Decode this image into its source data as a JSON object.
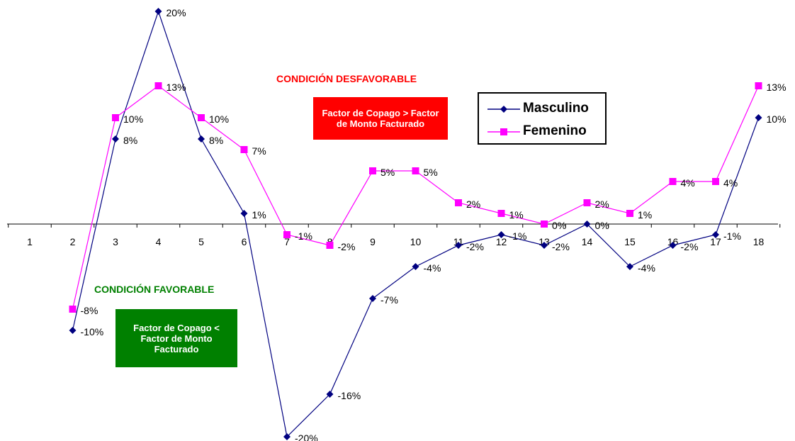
{
  "chart_data": {
    "type": "line",
    "categories": [
      "1",
      "2",
      "3",
      "4",
      "5",
      "6",
      "7",
      "8",
      "9",
      "10",
      "11",
      "12",
      "13",
      "14",
      "15",
      "16",
      "17",
      "18"
    ],
    "series": [
      {
        "name": "Masculino",
        "color": "#000080",
        "marker": "diamond",
        "values": [
          null,
          -10,
          8,
          20,
          8,
          1,
          -20,
          -16,
          -7,
          -4,
          -2,
          -1,
          -2,
          0,
          -4,
          -2,
          -1,
          10
        ],
        "labels": [
          "",
          "-10%",
          "8%",
          "20%",
          "8%",
          "1%",
          "-20%",
          "-16%",
          "-7%",
          "-4%",
          "-2%",
          "-1%",
          "-2%",
          "0%",
          "-4%",
          "-2%",
          "-1%",
          "10%"
        ]
      },
      {
        "name": "Femenino",
        "color": "#FF00FF",
        "marker": "square",
        "values": [
          null,
          -8,
          10,
          13,
          10,
          7,
          -1,
          -2,
          5,
          5,
          2,
          1,
          0,
          2,
          1,
          4,
          4,
          13
        ],
        "labels": [
          "",
          "-8%",
          "10%",
          "13%",
          "10%",
          "7%",
          "-1%",
          "-2%",
          "5%",
          "5%",
          "2%",
          "1%",
          "0%",
          "2%",
          "1%",
          "4%",
          "4%",
          "13%"
        ]
      }
    ],
    "ylim": [
      -20,
      20
    ],
    "grid": false,
    "legend_position": "top-right",
    "title": "",
    "xlabel": "",
    "ylabel": ""
  },
  "annotations": {
    "unfavorable": {
      "title": "CONDICIÓN DESFAVORABLE",
      "title_color": "#FF0000",
      "box_text": "Factor de Copago > Factor de Monto Facturado",
      "box_color": "#FF0000"
    },
    "favorable": {
      "title": "CONDICIÓN FAVORABLE",
      "title_color": "#008000",
      "box_text": "Factor de Copago < Factor de Monto Facturado",
      "box_color": "#008000"
    }
  }
}
